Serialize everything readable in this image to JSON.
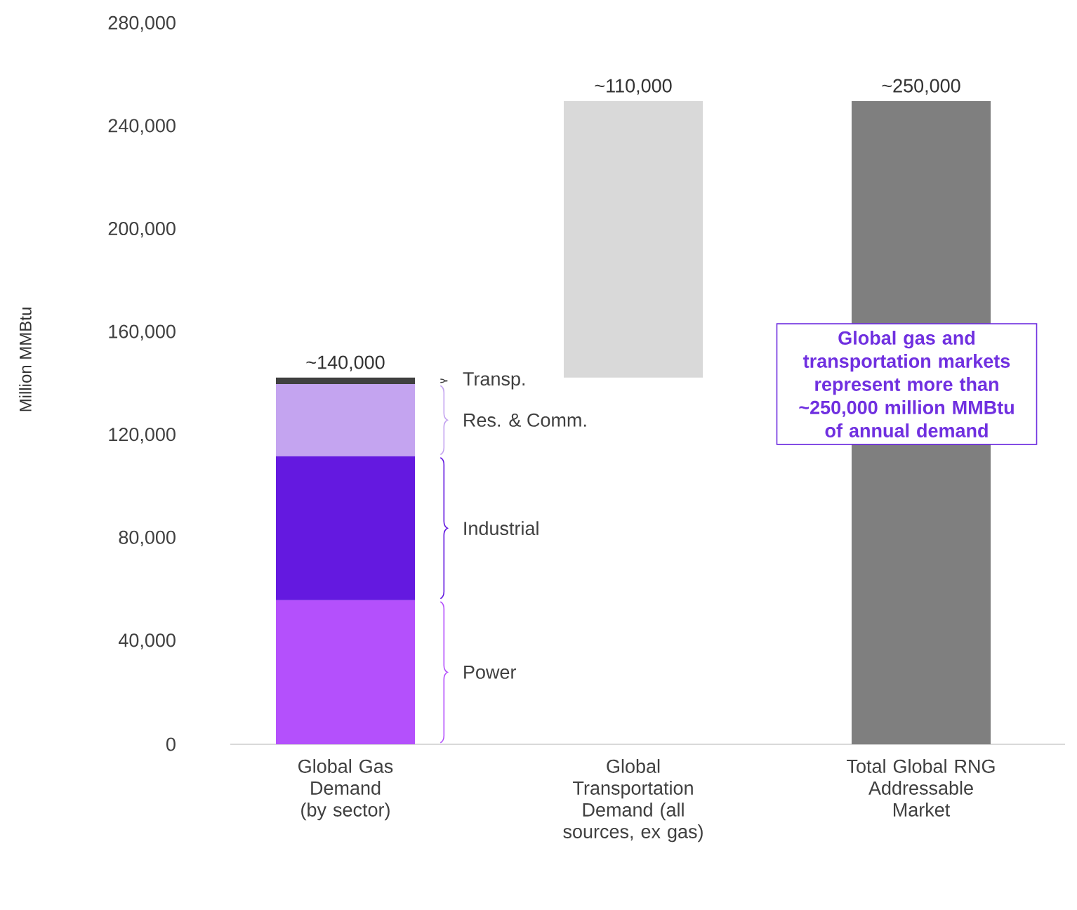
{
  "chart_data": {
    "type": "bar",
    "stacked": true,
    "ylabel": "Million MMBtu",
    "categories": [
      "Global Gas Demand (by sector)",
      "Global Transportation Demand (all sources, ex gas)",
      "Total Global RNG Addressable Market"
    ],
    "ylim": [
      0,
      280000
    ],
    "yticks": [
      {
        "value": 0,
        "label": "0"
      },
      {
        "value": 40000,
        "label": "40,000"
      },
      {
        "value": 80000,
        "label": "80,000"
      },
      {
        "value": 120000,
        "label": "120,000"
      },
      {
        "value": 160000,
        "label": "160,000"
      },
      {
        "value": 200000,
        "label": "200,000"
      },
      {
        "value": 240000,
        "label": "240,000"
      },
      {
        "value": 280000,
        "label": "280,000"
      }
    ],
    "series": [
      {
        "name": "Power",
        "color": "#b450fc",
        "values": [
          56000,
          null,
          null
        ]
      },
      {
        "name": "Industrial",
        "color": "#6419e0",
        "values": [
          56000,
          null,
          null
        ]
      },
      {
        "name": "Res. & Comm.",
        "color": "#c4a4f0",
        "values": [
          28000,
          null,
          null
        ]
      },
      {
        "name": "Transp.",
        "color": "#404040",
        "values": [
          2500,
          null,
          null
        ]
      },
      {
        "color": "#d9d9d9",
        "values": [
          null,
          107500,
          null
        ],
        "base": [
          null,
          142500,
          null
        ]
      },
      {
        "color": "#7f7f7f",
        "values": [
          null,
          null,
          250000
        ]
      }
    ],
    "annotations": [
      {
        "text": "~140,000",
        "x": "Global Gas Demand (by sector)",
        "y": 142500
      },
      {
        "text": "~110,000",
        "x": "Global Transportation Demand (all sources, ex gas)",
        "y": 250000
      },
      {
        "text": "~250,000",
        "x": "Total Global RNG Addressable Market",
        "y": 250000
      },
      "Global gas and transportation markets represent more than ~250,000 million MMBtu of annual demand"
    ]
  }
}
